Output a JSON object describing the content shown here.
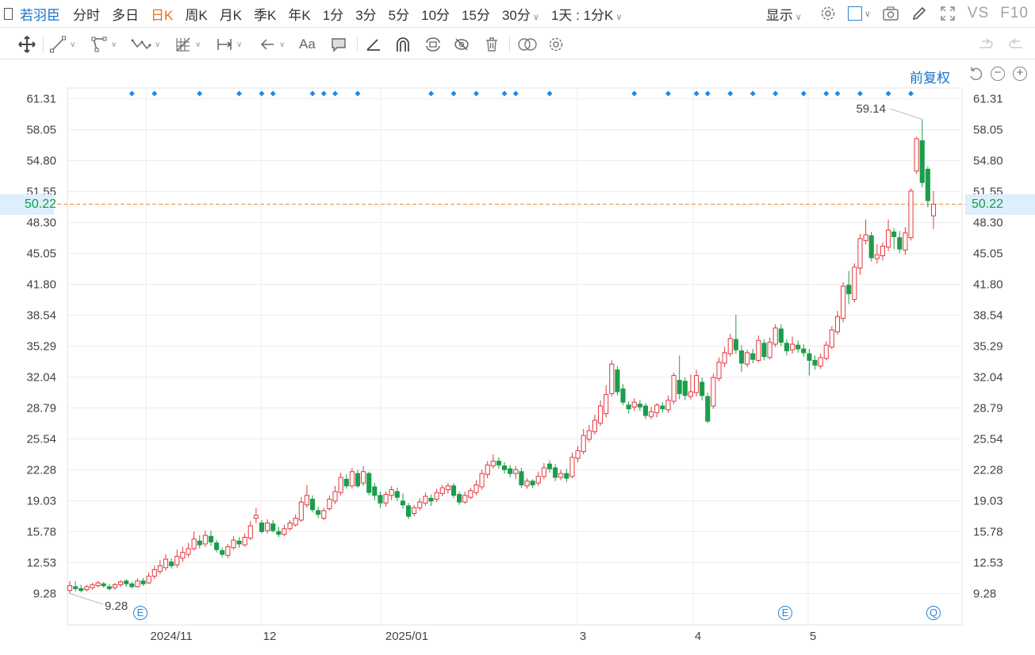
{
  "topbar": {
    "stock_name": "若羽臣",
    "periods": [
      "分时",
      "多日",
      "日K",
      "周K",
      "月K",
      "季K",
      "年K",
      "1分",
      "3分",
      "5分",
      "10分",
      "15分"
    ],
    "active_period": "日K",
    "period_30": "30分",
    "interval": "1天 : 1分K",
    "display_label": "显示",
    "vs": "VS",
    "f10": "F10"
  },
  "toolbar": {
    "text_tool": "Aa"
  },
  "chart_meta": {
    "adjust_label": "前复权",
    "current_price_label": "50.22",
    "max_label": "59.14",
    "min_label": "9.28",
    "events": [
      "E",
      "E",
      "Q"
    ],
    "colors": {
      "up": "#e0393e",
      "down": "#1a9e4b",
      "current_line": "#ee8a3a",
      "marker": "#1e88e5",
      "accent": "#1a73c8"
    }
  },
  "chart_data": {
    "type": "candlestick",
    "y_ticks": [
      "61.31",
      "58.05",
      "54.80",
      "51.55",
      "48.30",
      "45.05",
      "41.80",
      "38.54",
      "35.29",
      "32.04",
      "28.79",
      "25.54",
      "22.28",
      "19.03",
      "15.78",
      "12.53",
      "9.28"
    ],
    "ylim": [
      6.03,
      64.56
    ],
    "x_labels": [
      "2024/11",
      "12",
      "2025/01",
      "3",
      "4",
      "5"
    ],
    "current_price": 50.22,
    "max": 59.14,
    "min": 9.28,
    "candles": [
      {
        "o": 9.6,
        "c": 10.1,
        "h": 10.6,
        "l": 9.28
      },
      {
        "o": 10.0,
        "c": 9.8,
        "h": 10.6,
        "l": 9.5
      },
      {
        "o": 9.8,
        "c": 9.6,
        "h": 10.2,
        "l": 9.4
      },
      {
        "o": 9.7,
        "c": 10.0,
        "h": 10.2,
        "l": 9.5
      },
      {
        "o": 9.9,
        "c": 10.2,
        "h": 10.4,
        "l": 9.7
      },
      {
        "o": 10.1,
        "c": 10.4,
        "h": 10.6,
        "l": 9.9
      },
      {
        "o": 10.3,
        "c": 10.1,
        "h": 10.5,
        "l": 9.9
      },
      {
        "o": 10.0,
        "c": 9.8,
        "h": 10.3,
        "l": 9.6
      },
      {
        "o": 9.9,
        "c": 10.2,
        "h": 10.4,
        "l": 9.7
      },
      {
        "o": 10.2,
        "c": 10.5,
        "h": 10.7,
        "l": 10.0
      },
      {
        "o": 10.6,
        "c": 10.3,
        "h": 10.8,
        "l": 10.0
      },
      {
        "o": 10.3,
        "c": 10.0,
        "h": 10.5,
        "l": 9.8
      },
      {
        "o": 10.0,
        "c": 10.6,
        "h": 10.9,
        "l": 9.9
      },
      {
        "o": 10.6,
        "c": 10.3,
        "h": 10.9,
        "l": 10.1
      },
      {
        "o": 10.4,
        "c": 11.1,
        "h": 11.5,
        "l": 10.3
      },
      {
        "o": 11.1,
        "c": 11.8,
        "h": 12.2,
        "l": 10.8
      },
      {
        "o": 11.6,
        "c": 12.2,
        "h": 12.8,
        "l": 11.3
      },
      {
        "o": 12.0,
        "c": 12.9,
        "h": 13.4,
        "l": 11.7
      },
      {
        "o": 12.6,
        "c": 12.2,
        "h": 13.0,
        "l": 11.9
      },
      {
        "o": 12.3,
        "c": 13.2,
        "h": 13.9,
        "l": 12.0
      },
      {
        "o": 13.0,
        "c": 13.6,
        "h": 14.2,
        "l": 12.6
      },
      {
        "o": 13.4,
        "c": 14.0,
        "h": 14.6,
        "l": 13.1
      },
      {
        "o": 14.0,
        "c": 15.0,
        "h": 15.8,
        "l": 13.8
      },
      {
        "o": 14.8,
        "c": 14.4,
        "h": 15.4,
        "l": 14.0
      },
      {
        "o": 14.5,
        "c": 15.4,
        "h": 15.9,
        "l": 14.2
      },
      {
        "o": 15.3,
        "c": 14.7,
        "h": 15.9,
        "l": 14.3
      },
      {
        "o": 14.6,
        "c": 13.9,
        "h": 14.9,
        "l": 13.6
      },
      {
        "o": 13.8,
        "c": 13.4,
        "h": 14.1,
        "l": 13.1
      },
      {
        "o": 13.3,
        "c": 14.2,
        "h": 14.5,
        "l": 13.0
      },
      {
        "o": 14.1,
        "c": 14.9,
        "h": 15.3,
        "l": 13.9
      },
      {
        "o": 14.8,
        "c": 14.5,
        "h": 15.2,
        "l": 14.1
      },
      {
        "o": 14.4,
        "c": 15.2,
        "h": 15.6,
        "l": 14.2
      },
      {
        "o": 15.1,
        "c": 16.4,
        "h": 16.9,
        "l": 14.9
      },
      {
        "o": 17.2,
        "c": 17.5,
        "h": 18.3,
        "l": 16.7
      },
      {
        "o": 16.7,
        "c": 15.8,
        "h": 17.0,
        "l": 15.6
      },
      {
        "o": 15.9,
        "c": 16.7,
        "h": 17.1,
        "l": 15.6
      },
      {
        "o": 16.6,
        "c": 15.9,
        "h": 17.0,
        "l": 15.7
      },
      {
        "o": 15.8,
        "c": 15.5,
        "h": 16.3,
        "l": 15.2
      },
      {
        "o": 15.5,
        "c": 16.1,
        "h": 16.5,
        "l": 15.3
      },
      {
        "o": 16.1,
        "c": 16.7,
        "h": 17.0,
        "l": 15.9
      },
      {
        "o": 16.5,
        "c": 17.2,
        "h": 17.6,
        "l": 16.3
      },
      {
        "o": 17.0,
        "c": 18.9,
        "h": 19.4,
        "l": 16.8
      },
      {
        "o": 18.6,
        "c": 19.6,
        "h": 20.7,
        "l": 18.3
      },
      {
        "o": 19.2,
        "c": 18.1,
        "h": 19.6,
        "l": 17.8
      },
      {
        "o": 18.0,
        "c": 17.6,
        "h": 18.4,
        "l": 17.2
      },
      {
        "o": 17.2,
        "c": 18.0,
        "h": 18.3,
        "l": 17.0
      },
      {
        "o": 18.2,
        "c": 19.2,
        "h": 19.6,
        "l": 18.0
      },
      {
        "o": 19.0,
        "c": 20.0,
        "h": 20.6,
        "l": 18.7
      },
      {
        "o": 19.9,
        "c": 21.5,
        "h": 22.0,
        "l": 19.6
      },
      {
        "o": 21.3,
        "c": 20.6,
        "h": 21.8,
        "l": 20.3
      },
      {
        "o": 20.6,
        "c": 22.1,
        "h": 22.5,
        "l": 20.3
      },
      {
        "o": 21.9,
        "c": 20.6,
        "h": 22.3,
        "l": 20.4
      },
      {
        "o": 20.9,
        "c": 22.1,
        "h": 22.7,
        "l": 20.6
      },
      {
        "o": 21.9,
        "c": 19.9,
        "h": 22.1,
        "l": 19.6
      },
      {
        "o": 20.5,
        "c": 19.6,
        "h": 20.9,
        "l": 19.1
      },
      {
        "o": 19.6,
        "c": 18.8,
        "h": 20.0,
        "l": 18.3
      },
      {
        "o": 18.8,
        "c": 19.7,
        "h": 20.0,
        "l": 18.4
      },
      {
        "o": 19.6,
        "c": 20.2,
        "h": 20.6,
        "l": 19.1
      },
      {
        "o": 20.0,
        "c": 19.4,
        "h": 20.4,
        "l": 19.0
      },
      {
        "o": 19.0,
        "c": 18.6,
        "h": 19.8,
        "l": 18.2
      },
      {
        "o": 18.5,
        "c": 17.4,
        "h": 18.8,
        "l": 17.1
      },
      {
        "o": 17.7,
        "c": 18.3,
        "h": 18.6,
        "l": 17.4
      },
      {
        "o": 18.3,
        "c": 18.9,
        "h": 19.3,
        "l": 18.0
      },
      {
        "o": 18.8,
        "c": 19.5,
        "h": 19.9,
        "l": 18.5
      },
      {
        "o": 19.3,
        "c": 19.0,
        "h": 19.7,
        "l": 18.5
      },
      {
        "o": 19.2,
        "c": 19.9,
        "h": 20.3,
        "l": 18.9
      },
      {
        "o": 19.8,
        "c": 20.4,
        "h": 20.7,
        "l": 19.5
      },
      {
        "o": 20.2,
        "c": 20.6,
        "h": 20.9,
        "l": 19.8
      },
      {
        "o": 20.6,
        "c": 19.6,
        "h": 20.9,
        "l": 19.3
      },
      {
        "o": 19.7,
        "c": 18.9,
        "h": 20.0,
        "l": 18.6
      },
      {
        "o": 18.9,
        "c": 19.6,
        "h": 20.0,
        "l": 18.7
      },
      {
        "o": 19.4,
        "c": 20.1,
        "h": 20.4,
        "l": 19.2
      },
      {
        "o": 19.9,
        "c": 20.7,
        "h": 21.2,
        "l": 19.6
      },
      {
        "o": 20.5,
        "c": 21.9,
        "h": 22.3,
        "l": 20.2
      },
      {
        "o": 21.8,
        "c": 22.8,
        "h": 23.2,
        "l": 21.4
      },
      {
        "o": 22.7,
        "c": 23.2,
        "h": 23.9,
        "l": 22.4
      },
      {
        "o": 23.2,
        "c": 22.8,
        "h": 23.6,
        "l": 22.4
      },
      {
        "o": 22.7,
        "c": 22.3,
        "h": 23.1,
        "l": 21.9
      },
      {
        "o": 22.4,
        "c": 21.9,
        "h": 22.8,
        "l": 21.5
      },
      {
        "o": 21.9,
        "c": 22.3,
        "h": 22.7,
        "l": 21.3
      },
      {
        "o": 22.1,
        "c": 20.7,
        "h": 22.5,
        "l": 20.4
      },
      {
        "o": 20.6,
        "c": 21.1,
        "h": 21.4,
        "l": 20.3
      },
      {
        "o": 21.1,
        "c": 20.7,
        "h": 21.3,
        "l": 20.4
      },
      {
        "o": 20.9,
        "c": 21.6,
        "h": 22.1,
        "l": 20.6
      },
      {
        "o": 21.6,
        "c": 22.5,
        "h": 23.0,
        "l": 21.3
      },
      {
        "o": 22.9,
        "c": 22.4,
        "h": 23.3,
        "l": 22.0
      },
      {
        "o": 22.5,
        "c": 21.5,
        "h": 22.9,
        "l": 21.1
      },
      {
        "o": 21.5,
        "c": 21.9,
        "h": 22.3,
        "l": 21.2
      },
      {
        "o": 21.9,
        "c": 21.4,
        "h": 22.4,
        "l": 21.0
      },
      {
        "o": 21.6,
        "c": 23.6,
        "h": 24.1,
        "l": 21.4
      },
      {
        "o": 23.5,
        "c": 24.3,
        "h": 24.8,
        "l": 23.1
      },
      {
        "o": 24.2,
        "c": 25.9,
        "h": 26.6,
        "l": 23.9
      },
      {
        "o": 25.5,
        "c": 26.4,
        "h": 27.0,
        "l": 25.2
      },
      {
        "o": 26.3,
        "c": 27.5,
        "h": 28.1,
        "l": 26.0
      },
      {
        "o": 27.2,
        "c": 29.0,
        "h": 29.6,
        "l": 26.9
      },
      {
        "o": 28.2,
        "c": 30.2,
        "h": 31.2,
        "l": 27.8
      },
      {
        "o": 30.3,
        "c": 33.4,
        "h": 33.8,
        "l": 30.0
      },
      {
        "o": 32.8,
        "c": 30.5,
        "h": 33.2,
        "l": 30.1
      },
      {
        "o": 30.8,
        "c": 29.4,
        "h": 31.3,
        "l": 29.1
      },
      {
        "o": 29.1,
        "c": 28.7,
        "h": 29.5,
        "l": 28.2
      },
      {
        "o": 28.9,
        "c": 29.4,
        "h": 29.8,
        "l": 28.5
      },
      {
        "o": 29.2,
        "c": 28.9,
        "h": 29.6,
        "l": 28.5
      },
      {
        "o": 29.0,
        "c": 28.0,
        "h": 29.3,
        "l": 27.6
      },
      {
        "o": 27.9,
        "c": 28.4,
        "h": 28.9,
        "l": 27.6
      },
      {
        "o": 28.3,
        "c": 29.1,
        "h": 29.3,
        "l": 27.8
      },
      {
        "o": 29.0,
        "c": 28.7,
        "h": 29.4,
        "l": 28.3
      },
      {
        "o": 28.6,
        "c": 29.6,
        "h": 30.1,
        "l": 28.3
      },
      {
        "o": 29.5,
        "c": 32.2,
        "h": 32.5,
        "l": 29.2
      },
      {
        "o": 31.7,
        "c": 30.3,
        "h": 34.3,
        "l": 29.7
      },
      {
        "o": 31.6,
        "c": 30.1,
        "h": 32.0,
        "l": 29.6
      },
      {
        "o": 30.0,
        "c": 30.5,
        "h": 32.3,
        "l": 29.7
      },
      {
        "o": 30.4,
        "c": 32.2,
        "h": 32.8,
        "l": 30.0
      },
      {
        "o": 31.5,
        "c": 30.1,
        "h": 32.0,
        "l": 29.6
      },
      {
        "o": 30.0,
        "c": 27.4,
        "h": 30.4,
        "l": 27.2
      },
      {
        "o": 29.0,
        "c": 32.0,
        "h": 32.4,
        "l": 28.7
      },
      {
        "o": 31.9,
        "c": 33.6,
        "h": 34.1,
        "l": 31.6
      },
      {
        "o": 33.5,
        "c": 34.6,
        "h": 35.2,
        "l": 33.1
      },
      {
        "o": 34.5,
        "c": 36.1,
        "h": 36.6,
        "l": 34.2
      },
      {
        "o": 36.0,
        "c": 34.9,
        "h": 38.6,
        "l": 34.5
      },
      {
        "o": 34.8,
        "c": 33.5,
        "h": 35.4,
        "l": 32.6
      },
      {
        "o": 33.4,
        "c": 34.6,
        "h": 34.9,
        "l": 33.1
      },
      {
        "o": 34.5,
        "c": 33.9,
        "h": 35.0,
        "l": 33.5
      },
      {
        "o": 33.8,
        "c": 35.9,
        "h": 36.4,
        "l": 33.6
      },
      {
        "o": 35.6,
        "c": 34.2,
        "h": 36.0,
        "l": 33.8
      },
      {
        "o": 34.1,
        "c": 35.7,
        "h": 36.2,
        "l": 33.9
      },
      {
        "o": 35.5,
        "c": 37.2,
        "h": 37.6,
        "l": 35.2
      },
      {
        "o": 37.1,
        "c": 35.7,
        "h": 37.6,
        "l": 35.3
      },
      {
        "o": 35.6,
        "c": 34.8,
        "h": 36.0,
        "l": 34.3
      },
      {
        "o": 34.9,
        "c": 35.5,
        "h": 36.3,
        "l": 34.5
      },
      {
        "o": 35.4,
        "c": 35.0,
        "h": 35.9,
        "l": 34.6
      },
      {
        "o": 35.0,
        "c": 34.6,
        "h": 35.5,
        "l": 34.2
      },
      {
        "o": 34.5,
        "c": 33.8,
        "h": 35.0,
        "l": 32.2
      },
      {
        "o": 33.8,
        "c": 33.3,
        "h": 34.3,
        "l": 32.8
      },
      {
        "o": 33.2,
        "c": 34.1,
        "h": 34.5,
        "l": 32.9
      },
      {
        "o": 34.0,
        "c": 35.4,
        "h": 35.8,
        "l": 33.8
      },
      {
        "o": 35.2,
        "c": 37.0,
        "h": 37.4,
        "l": 35.0
      },
      {
        "o": 36.8,
        "c": 38.4,
        "h": 39.0,
        "l": 36.5
      },
      {
        "o": 38.2,
        "c": 41.6,
        "h": 42.0,
        "l": 37.8
      },
      {
        "o": 41.7,
        "c": 40.8,
        "h": 43.2,
        "l": 39.7
      },
      {
        "o": 40.2,
        "c": 43.6,
        "h": 44.0,
        "l": 39.9
      },
      {
        "o": 43.5,
        "c": 46.6,
        "h": 47.1,
        "l": 42.8
      },
      {
        "o": 46.4,
        "c": 47.0,
        "h": 48.6,
        "l": 46.0
      },
      {
        "o": 46.9,
        "c": 44.6,
        "h": 47.3,
        "l": 44.2
      },
      {
        "o": 44.5,
        "c": 44.9,
        "h": 46.0,
        "l": 44.0
      },
      {
        "o": 44.8,
        "c": 45.8,
        "h": 46.2,
        "l": 44.3
      },
      {
        "o": 45.7,
        "c": 47.5,
        "h": 48.6,
        "l": 45.3
      },
      {
        "o": 47.3,
        "c": 46.8,
        "h": 47.7,
        "l": 45.5
      },
      {
        "o": 46.7,
        "c": 45.5,
        "h": 47.4,
        "l": 45.1
      },
      {
        "o": 45.4,
        "c": 47.2,
        "h": 47.8,
        "l": 44.9
      },
      {
        "o": 46.7,
        "c": 51.6,
        "h": 51.9,
        "l": 46.4
      },
      {
        "o": 53.7,
        "c": 57.1,
        "h": 57.3,
        "l": 53.4
      },
      {
        "o": 56.9,
        "c": 52.5,
        "h": 59.14,
        "l": 52.0
      },
      {
        "o": 53.9,
        "c": 50.6,
        "h": 54.2,
        "l": 49.9
      },
      {
        "o": 49.0,
        "c": 50.22,
        "h": 51.6,
        "l": 47.6
      }
    ],
    "markers_idx": [
      5,
      7,
      11,
      14,
      16,
      17,
      20,
      21,
      22,
      24,
      30,
      32,
      34,
      36,
      37,
      40,
      47,
      50,
      52,
      53,
      55,
      57,
      59,
      61,
      63,
      64,
      66,
      68,
      70
    ]
  }
}
